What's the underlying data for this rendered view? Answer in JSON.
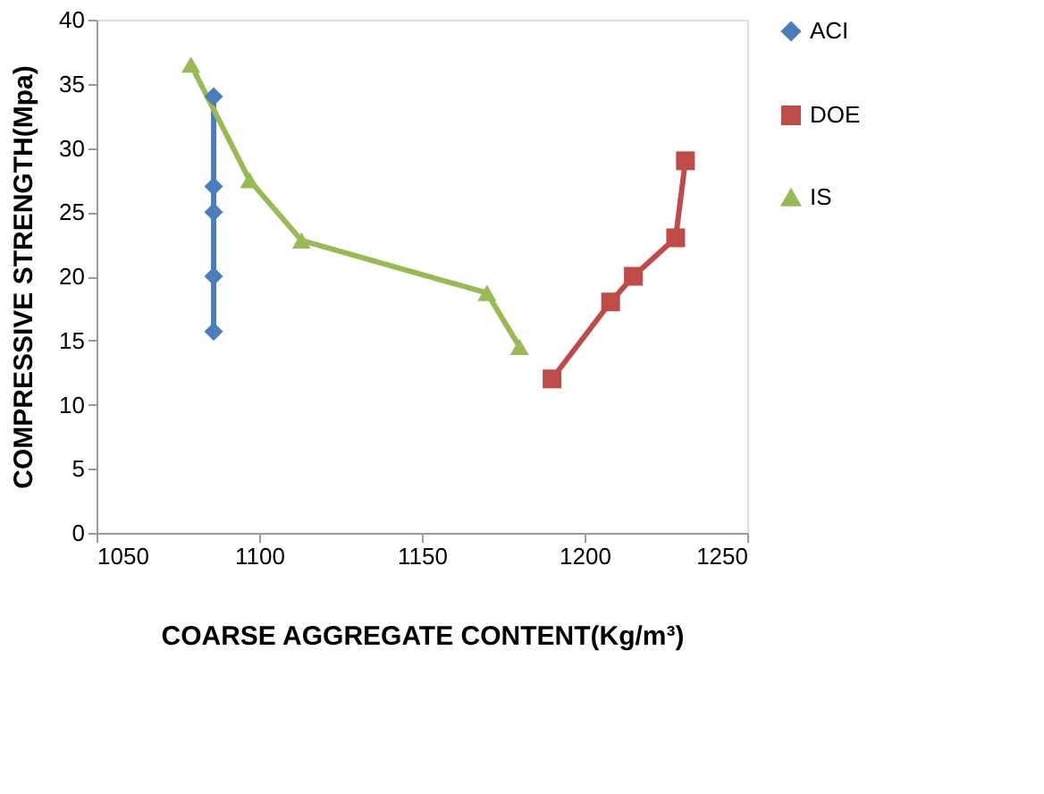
{
  "chart_data": {
    "type": "line",
    "xlabel": "COARSE AGGREGATE CONTENT(Kg/m³)",
    "ylabel": "COMPRESSIVE STRENGTH(Mpa)",
    "xlim": [
      1050,
      1250
    ],
    "xticks": [
      1050,
      1100,
      1150,
      1200,
      1250
    ],
    "ylim": [
      0,
      40
    ],
    "yticks": [
      0,
      5,
      10,
      15,
      20,
      25,
      30,
      35,
      40
    ],
    "grid": false,
    "legend": "right",
    "series": [
      {
        "name": "ACI",
        "color": "#4a7ebb",
        "marker": "diamond",
        "x": [
          1086,
          1086,
          1086,
          1086,
          1086
        ],
        "values": [
          15.7,
          20,
          25,
          27,
          34
        ]
      },
      {
        "name": "DOE",
        "color": "#be4b48",
        "marker": "square",
        "x": [
          1190,
          1208,
          1215,
          1228,
          1231
        ],
        "values": [
          12,
          18,
          20,
          23,
          29
        ]
      },
      {
        "name": "IS",
        "color": "#98b954",
        "marker": "triangle",
        "x": [
          1079,
          1097,
          1113,
          1170,
          1180
        ],
        "values": [
          36.5,
          27.5,
          22.8,
          18.7,
          14.5
        ]
      }
    ]
  }
}
